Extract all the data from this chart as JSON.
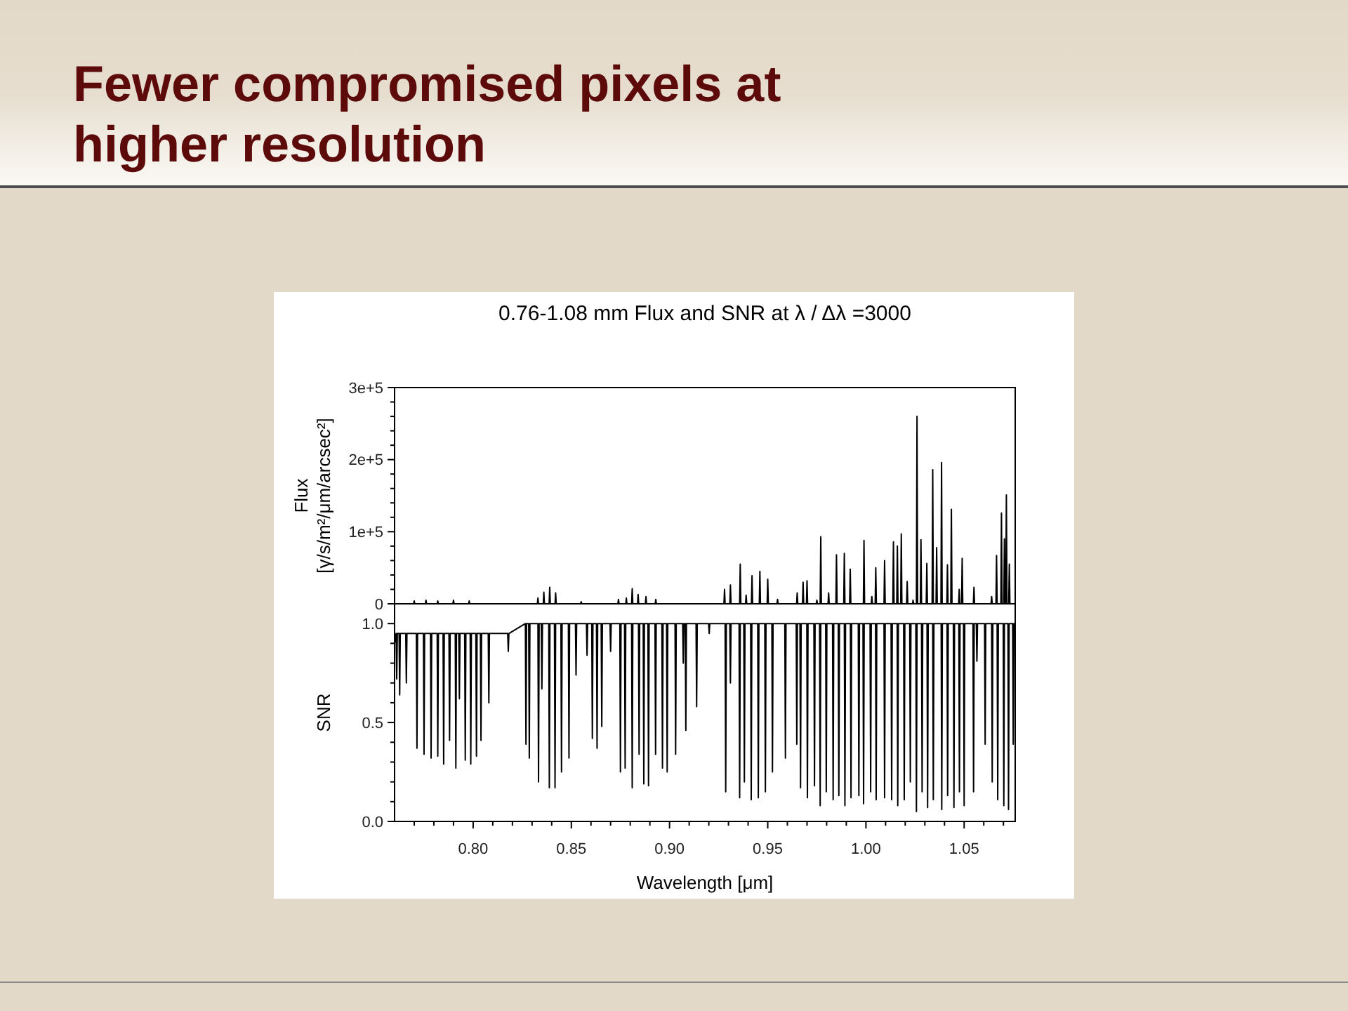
{
  "chart_data": [
    {
      "type": "line",
      "title": "Fewer compromised pixels at higher resolution",
      "subtitle": "0.76-1.08 mm Flux and SNR at λ / Δλ =3000",
      "ylabel": "Flux\n[γ/s/m²/μm/arcsec²]",
      "color": "#000000",
      "x": [
        0.76,
        0.7697,
        0.77,
        0.7703,
        0.7757,
        0.776,
        0.7763,
        0.7817,
        0.782,
        0.7823,
        0.7897,
        0.79,
        0.7903,
        0.7977,
        0.798,
        0.7983,
        0.8327,
        0.833,
        0.8333,
        0.8357,
        0.836,
        0.8363,
        0.8387,
        0.839,
        0.8393,
        0.8417,
        0.842,
        0.8423,
        0.8547,
        0.855,
        0.8553,
        0.8737,
        0.874,
        0.8743,
        0.8777,
        0.878,
        0.8783,
        0.8807,
        0.881,
        0.8813,
        0.8837,
        0.884,
        0.8843,
        0.8877,
        0.888,
        0.8883,
        0.8927,
        0.893,
        0.8933,
        0.9277,
        0.928,
        0.9283,
        0.9307,
        0.931,
        0.9313,
        0.9357,
        0.936,
        0.9363,
        0.9387,
        0.939,
        0.9393,
        0.9417,
        0.942,
        0.9423,
        0.9457,
        0.946,
        0.9463,
        0.9497,
        0.95,
        0.9503,
        0.9547,
        0.955,
        0.9553,
        0.9647,
        0.965,
        0.9653,
        0.9677,
        0.968,
        0.9683,
        0.9697,
        0.97,
        0.9703,
        0.9747,
        0.975,
        0.9753,
        0.9767,
        0.977,
        0.9773,
        0.9807,
        0.981,
        0.9813,
        0.9847,
        0.985,
        0.9853,
        0.9887,
        0.989,
        0.9893,
        0.9917,
        0.992,
        0.9923,
        0.9987,
        0.999,
        0.9993,
        1.0027,
        1.003,
        1.0033,
        1.0047,
        1.005,
        1.0053,
        1.0092,
        1.0095,
        1.0098,
        1.0137,
        1.014,
        1.0143,
        1.0157,
        1.016,
        1.0163,
        1.0177,
        1.018,
        1.0183,
        1.0207,
        1.021,
        1.0213,
        1.0237,
        1.024,
        1.0243,
        1.0257,
        1.026,
        1.0263,
        1.0277,
        1.028,
        1.0283,
        1.0307,
        1.031,
        1.0313,
        1.0337,
        1.034,
        1.0343,
        1.0357,
        1.036,
        1.0363,
        1.0382,
        1.0385,
        1.0388,
        1.0412,
        1.0415,
        1.0418,
        1.0432,
        1.0435,
        1.0438,
        1.0472,
        1.0475,
        1.0478,
        1.0487,
        1.049,
        1.0493,
        1.0547,
        1.055,
        1.0553,
        1.0637,
        1.064,
        1.0643,
        1.0662,
        1.0665,
        1.0668,
        1.0687,
        1.069,
        1.0693,
        1.0702,
        1.0705,
        1.0708,
        1.0712,
        1.0715,
        1.0718,
        1.0727,
        1.073,
        1.0733,
        1.076
      ],
      "values": [
        0,
        0,
        4000,
        0,
        0,
        5000,
        0,
        0,
        4000,
        0,
        0,
        5000,
        0,
        0,
        4000,
        0,
        0,
        8000,
        0,
        0,
        16000,
        0,
        0,
        23000,
        0,
        0,
        15000,
        0,
        0,
        3000,
        0,
        0,
        6000,
        0,
        0,
        8000,
        0,
        0,
        21000,
        0,
        0,
        13000,
        0,
        0,
        10000,
        0,
        0,
        6000,
        0,
        0,
        20000,
        0,
        0,
        26000,
        0,
        0,
        55000,
        0,
        0,
        12000,
        0,
        0,
        39000,
        0,
        0,
        45000,
        0,
        0,
        34000,
        0,
        0,
        6000,
        0,
        0,
        15000,
        0,
        0,
        30000,
        0,
        0,
        32000,
        0,
        0,
        5000,
        0,
        0,
        93000,
        0,
        0,
        15000,
        0,
        0,
        68000,
        0,
        0,
        70000,
        0,
        0,
        48000,
        0,
        0,
        88000,
        0,
        0,
        10000,
        0,
        0,
        50000,
        0,
        0,
        60000,
        0,
        0,
        86000,
        0,
        0,
        80000,
        0,
        0,
        97000,
        0,
        0,
        31000,
        0,
        0,
        5000,
        0,
        0,
        260000,
        0,
        0,
        89000,
        0,
        0,
        56000,
        0,
        0,
        186000,
        0,
        0,
        78000,
        0,
        0,
        196000,
        0,
        0,
        54000,
        0,
        0,
        131000,
        0,
        0,
        20000,
        0,
        0,
        63000,
        0,
        0,
        23000,
        0,
        0,
        10000,
        0,
        0,
        67000,
        0,
        0,
        126000,
        0,
        0,
        90000,
        0,
        0,
        151000,
        0,
        0,
        55000,
        0,
        0
      ],
      "xlim": [
        0.76,
        1.076
      ],
      "ylim": [
        0,
        300000
      ],
      "yticks": [
        0,
        {
          "value": 20000,
          "label": null
        },
        {
          "value": 40000,
          "label": null
        },
        {
          "value": 60000,
          "label": null
        },
        {
          "value": 80000,
          "label": null
        },
        {
          "value": 100000,
          "label": "1e+5"
        },
        {
          "value": 120000,
          "label": null
        },
        {
          "value": 140000,
          "label": null
        },
        {
          "value": 160000,
          "label": null
        },
        {
          "value": 180000,
          "label": null
        },
        {
          "value": 200000,
          "label": "2e+5"
        },
        {
          "value": 220000,
          "label": null
        },
        {
          "value": 240000,
          "label": null
        },
        {
          "value": 260000,
          "label": null
        },
        {
          "value": 280000,
          "label": null
        },
        {
          "value": 300000,
          "label": "3e+5"
        }
      ],
      "tick_labels": "y"
    },
    {
      "type": "line",
      "xlabel": "Wavelength [μm]",
      "ylabel": "SNR",
      "color": "#000000",
      "x": [
        0.76,
        0.7608,
        0.7611,
        0.7614,
        0.7623,
        0.7626,
        0.7629,
        0.7657,
        0.766,
        0.7663,
        0.7711,
        0.7714,
        0.7717,
        0.7747,
        0.775,
        0.7753,
        0.7783,
        0.7786,
        0.7789,
        0.7817,
        0.782,
        0.7823,
        0.7847,
        0.785,
        0.7853,
        0.7877,
        0.788,
        0.7883,
        0.7909,
        0.7912,
        0.7915,
        0.7927,
        0.793,
        0.7933,
        0.7957,
        0.796,
        0.7963,
        0.7985,
        0.7988,
        0.7991,
        0.8014,
        0.8017,
        0.802,
        0.8037,
        0.804,
        0.8043,
        0.8077,
        0.808,
        0.8083,
        0.8176,
        0.8179,
        0.8182,
        0.8266,
        0.8269,
        0.8272,
        0.8283,
        0.8286,
        0.8289,
        0.833,
        0.8333,
        0.8336,
        0.8347,
        0.835,
        0.8353,
        0.8385,
        0.8388,
        0.8391,
        0.8414,
        0.8417,
        0.842,
        0.8447,
        0.845,
        0.8453,
        0.8485,
        0.8488,
        0.8491,
        0.8521,
        0.8524,
        0.8527,
        0.8577,
        0.858,
        0.8583,
        0.8604,
        0.8607,
        0.861,
        0.8628,
        0.8631,
        0.8634,
        0.8652,
        0.8655,
        0.8658,
        0.8697,
        0.87,
        0.8703,
        0.8747,
        0.875,
        0.8753,
        0.8771,
        0.8774,
        0.8777,
        0.8807,
        0.881,
        0.8813,
        0.8842,
        0.8845,
        0.8848,
        0.8866,
        0.8869,
        0.8872,
        0.889,
        0.8893,
        0.8896,
        0.8926,
        0.8929,
        0.8932,
        0.8961,
        0.8964,
        0.8967,
        0.8985,
        0.8988,
        0.8991,
        0.9028,
        0.9031,
        0.9034,
        0.9067,
        0.907,
        0.9073,
        0.908,
        0.9083,
        0.9086,
        0.9135,
        0.9138,
        0.9141,
        0.9199,
        0.9202,
        0.9205,
        0.9283,
        0.9286,
        0.9289,
        0.9307,
        0.931,
        0.9313,
        0.9354,
        0.9357,
        0.936,
        0.9378,
        0.9381,
        0.9384,
        0.9413,
        0.9416,
        0.9419,
        0.9449,
        0.9452,
        0.9455,
        0.9485,
        0.9488,
        0.9491,
        0.9521,
        0.9524,
        0.9527,
        0.9587,
        0.959,
        0.9593,
        0.9645,
        0.9648,
        0.9651,
        0.9664,
        0.9667,
        0.967,
        0.9699,
        0.9702,
        0.9705,
        0.9735,
        0.9738,
        0.9741,
        0.9764,
        0.9767,
        0.977,
        0.9795,
        0.9798,
        0.9801,
        0.983,
        0.9833,
        0.9836,
        0.9859,
        0.9862,
        0.9865,
        0.989,
        0.9893,
        0.9896,
        0.9921,
        0.9924,
        0.9927,
        0.9961,
        0.9964,
        0.9967,
        0.9985,
        0.9988,
        0.9991,
        1.0021,
        1.0024,
        1.0027,
        1.0049,
        1.0052,
        1.0055,
        1.0092,
        1.0095,
        1.0098,
        1.0128,
        1.0131,
        1.0134,
        1.0159,
        1.0162,
        1.0165,
        1.0192,
        1.0195,
        1.0198,
        1.0223,
        1.0226,
        1.0229,
        1.0254,
        1.0257,
        1.026,
        1.0283,
        1.0286,
        1.0289,
        1.0311,
        1.0314,
        1.0317,
        1.034,
        1.0343,
        1.0346,
        1.0383,
        1.0386,
        1.0389,
        1.0413,
        1.0416,
        1.0419,
        1.0445,
        1.0448,
        1.0451,
        1.0473,
        1.0476,
        1.0479,
        1.0497,
        1.05,
        1.0503,
        1.0545,
        1.0548,
        1.0551,
        1.0562,
        1.0565,
        1.0568,
        1.0604,
        1.0607,
        1.061,
        1.064,
        1.0643,
        1.0646,
        1.0668,
        1.0671,
        1.0674,
        1.0699,
        1.0702,
        1.0705,
        1.0723,
        1.0726,
        1.0729,
        1.0747,
        1.075,
        1.0753,
        1.076
      ],
      "values": [
        0.9,
        0.95,
        0.72,
        0.95,
        0.95,
        0.64,
        0.95,
        0.95,
        0.7,
        0.95,
        0.95,
        0.37,
        0.95,
        0.95,
        0.34,
        0.95,
        0.95,
        0.32,
        0.95,
        0.95,
        0.33,
        0.95,
        0.95,
        0.29,
        0.95,
        0.95,
        0.41,
        0.95,
        0.95,
        0.27,
        0.95,
        0.95,
        0.62,
        0.95,
        0.95,
        0.31,
        0.95,
        0.95,
        0.29,
        0.95,
        0.95,
        0.33,
        0.95,
        0.95,
        0.41,
        0.95,
        0.95,
        0.6,
        0.95,
        0.95,
        0.86,
        0.95,
        1,
        0.39,
        1,
        1,
        0.32,
        1,
        1,
        0.2,
        1,
        1,
        0.67,
        1,
        1,
        0.17,
        1,
        1,
        0.17,
        1,
        1,
        0.25,
        1,
        1,
        0.32,
        1,
        1,
        0.74,
        1,
        1,
        0.84,
        1,
        1,
        0.42,
        1,
        1,
        0.37,
        1,
        1,
        0.48,
        1,
        1,
        0.86,
        1,
        1,
        0.25,
        1,
        1,
        0.27,
        1,
        1,
        0.17,
        1,
        1,
        0.34,
        1,
        1,
        0.19,
        1,
        1,
        0.18,
        1,
        1,
        0.34,
        1,
        1,
        0.27,
        1,
        1,
        0.25,
        1,
        1,
        0.34,
        1,
        1,
        0.8,
        1,
        1,
        0.46,
        1,
        1,
        0.58,
        1,
        1,
        0.95,
        1,
        1,
        0.15,
        1,
        1,
        0.7,
        1,
        1,
        0.12,
        1,
        1,
        0.2,
        1,
        1,
        0.11,
        1,
        1,
        0.12,
        1,
        1,
        0.15,
        1,
        1,
        0.25,
        1,
        1,
        0.32,
        1,
        1,
        0.39,
        1,
        1,
        0.17,
        1,
        1,
        0.12,
        1,
        1,
        0.18,
        1,
        1,
        0.08,
        1,
        1,
        0.15,
        1,
        1,
        0.11,
        1,
        1,
        0.13,
        1,
        1,
        0.08,
        1,
        1,
        0.12,
        1,
        1,
        0.13,
        1,
        1,
        0.09,
        1,
        1,
        0.15,
        1,
        1,
        0.11,
        1,
        1,
        0.12,
        1,
        1,
        0.11,
        1,
        1,
        0.08,
        1,
        1,
        0.11,
        1,
        1,
        0.2,
        1,
        1,
        0.05,
        1,
        1,
        0.15,
        1,
        1,
        0.07,
        1,
        1,
        0.11,
        1,
        1,
        0.06,
        1,
        1,
        0.13,
        1,
        1,
        0.07,
        1,
        1,
        0.15,
        1,
        1,
        0.08,
        1,
        1,
        0.15,
        1,
        1,
        0.81,
        1,
        1,
        0.39,
        1,
        1,
        0.2,
        1,
        1,
        0.11,
        1,
        1,
        0.08,
        1,
        1,
        0.06,
        1,
        1,
        0.39,
        1,
        1
      ],
      "xlim": [
        0.76,
        1.076
      ],
      "ylim": [
        0,
        1.1
      ],
      "xticks": [
        {
          "value": 0.77,
          "label": null
        },
        {
          "value": 0.78,
          "label": null
        },
        {
          "value": 0.79,
          "label": null
        },
        {
          "value": 0.8,
          "label": "0.80"
        },
        {
          "value": 0.81,
          "label": null
        },
        {
          "value": 0.82,
          "label": null
        },
        {
          "value": 0.83,
          "label": null
        },
        {
          "value": 0.84,
          "label": null
        },
        0.85,
        {
          "value": 0.86,
          "label": null
        },
        {
          "value": 0.87,
          "label": null
        },
        {
          "value": 0.88,
          "label": null
        },
        {
          "value": 0.89,
          "label": null
        },
        {
          "value": 0.9,
          "label": "0.90"
        },
        {
          "value": 0.91,
          "label": null
        },
        {
          "value": 0.92,
          "label": null
        },
        {
          "value": 0.93,
          "label": null
        },
        {
          "value": 0.94,
          "label": null
        },
        0.95,
        {
          "value": 0.96,
          "label": null
        },
        {
          "value": 0.97,
          "label": null
        },
        {
          "value": 0.98,
          "label": null
        },
        {
          "value": 0.99,
          "label": null
        },
        {
          "value": 1,
          "label": "1.00"
        },
        {
          "value": 1.01,
          "label": null
        },
        {
          "value": 1.02,
          "label": null
        },
        {
          "value": 1.03,
          "label": null
        },
        {
          "value": 1.04,
          "label": null
        },
        1.05,
        {
          "value": 1.06,
          "label": null
        },
        {
          "value": 1.07,
          "label": null
        }
      ],
      "yticks": [
        {
          "value": 0,
          "label": "0.0"
        },
        {
          "value": 0.1,
          "label": null
        },
        {
          "value": 0.2,
          "label": null
        },
        {
          "value": 0.3,
          "label": null
        },
        {
          "value": 0.4,
          "label": null
        },
        0.5,
        {
          "value": 0.6,
          "label": null
        },
        {
          "value": 0.7,
          "label": null
        },
        {
          "value": 0.8,
          "label": null
        },
        {
          "value": 0.9,
          "label": null
        },
        {
          "value": 1,
          "label": "1.0"
        }
      ]
    }
  ]
}
